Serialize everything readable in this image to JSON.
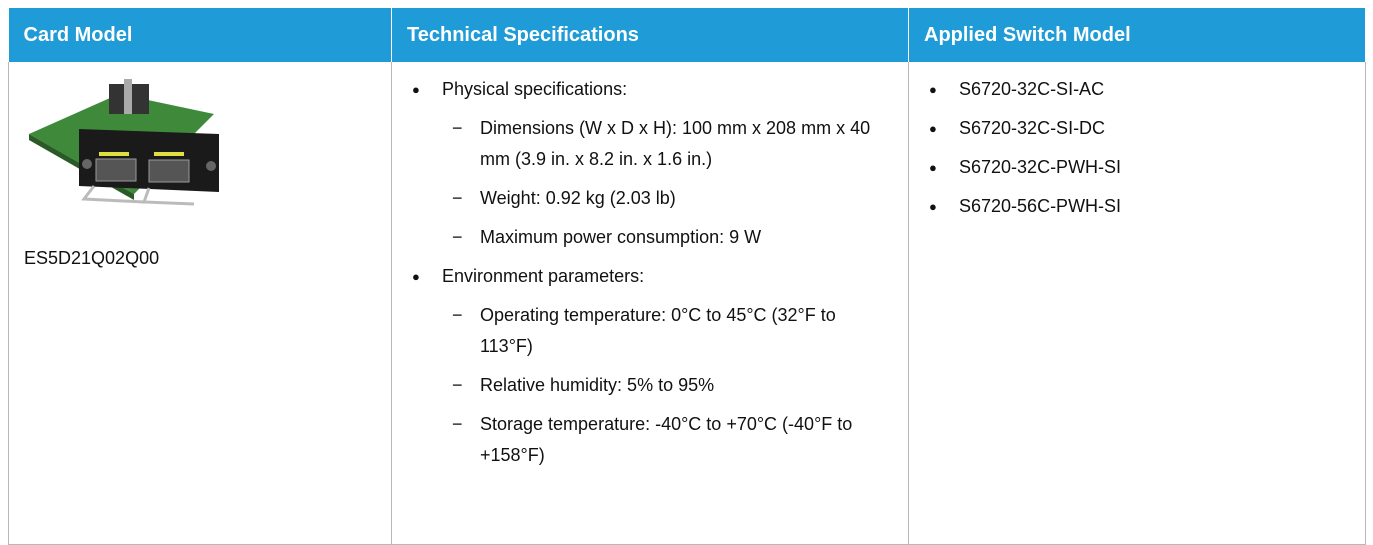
{
  "table": {
    "headers": [
      "Card Model",
      "Technical Specifications",
      "Applied Switch Model"
    ],
    "rows": [
      {
        "card_model": "ES5D21Q02Q00",
        "specs": [
          {
            "text": "Physical specifications:",
            "items": [
              "Dimensions (W x D x H): 100 mm x 208 mm x 40 mm (3.9 in. x 8.2 in. x 1.6 in.)",
              "Weight: 0.92 kg (2.03 lb)",
              "Maximum power consumption: 9 W"
            ]
          },
          {
            "text": "Environment parameters:",
            "items": [
              "Operating temperature: 0°C to 45°C (32°F to 113°F)",
              "Relative humidity: 5% to 95%",
              "Storage temperature: -40°C to +70°C (-40°F to +158°F)"
            ]
          }
        ],
        "switch_models": [
          "S6720-32C-SI-AC",
          "S6720-32C-SI-DC",
          "S6720-32C-PWH-SI",
          "S6720-56C-PWH-SI"
        ]
      }
    ]
  }
}
